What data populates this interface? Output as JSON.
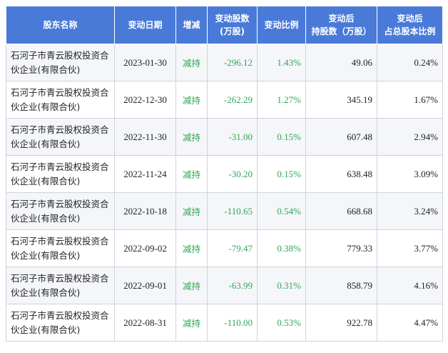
{
  "table": {
    "headers": [
      "股东名称",
      "变动日期",
      "增减",
      "变动股数\n(万股)",
      "变动比例",
      "变动后\n持股数（万股）",
      "变动后\n占总股本比例"
    ],
    "rows": [
      {
        "holder": "石河子市青云股权投资合伙企业(有限合伙)",
        "date": "2023-01-30",
        "type": "减持",
        "change": "-296.12",
        "ratio": "1.43%",
        "after": "49.06",
        "pct": "0.24%"
      },
      {
        "holder": "石河子市青云股权投资合伙企业(有限合伙)",
        "date": "2022-12-30",
        "type": "减持",
        "change": "-262.29",
        "ratio": "1.27%",
        "after": "345.19",
        "pct": "1.67%"
      },
      {
        "holder": "石河子市青云股权投资合伙企业(有限合伙)",
        "date": "2022-11-30",
        "type": "减持",
        "change": "-31.00",
        "ratio": "0.15%",
        "after": "607.48",
        "pct": "2.94%"
      },
      {
        "holder": "石河子市青云股权投资合伙企业(有限合伙)",
        "date": "2022-11-24",
        "type": "减持",
        "change": "-30.20",
        "ratio": "0.15%",
        "after": "638.48",
        "pct": "3.09%"
      },
      {
        "holder": "石河子市青云股权投资合伙企业(有限合伙)",
        "date": "2022-10-18",
        "type": "减持",
        "change": "-110.65",
        "ratio": "0.54%",
        "after": "668.68",
        "pct": "3.24%"
      },
      {
        "holder": "石河子市青云股权投资合伙企业(有限合伙)",
        "date": "2022-09-02",
        "type": "减持",
        "change": "-79.47",
        "ratio": "0.38%",
        "after": "779.33",
        "pct": "3.77%"
      },
      {
        "holder": "石河子市青云股权投资合伙企业(有限合伙)",
        "date": "2022-09-01",
        "type": "减持",
        "change": "-63.99",
        "ratio": "0.31%",
        "after": "858.79",
        "pct": "4.16%"
      },
      {
        "holder": "石河子市青云股权投资合伙企业(有限合伙)",
        "date": "2022-08-31",
        "type": "减持",
        "change": "-110.00",
        "ratio": "0.53%",
        "after": "922.78",
        "pct": "4.47%"
      }
    ]
  },
  "colors": {
    "header_bg": "#4a7ad8",
    "decrease": "#33a652"
  }
}
